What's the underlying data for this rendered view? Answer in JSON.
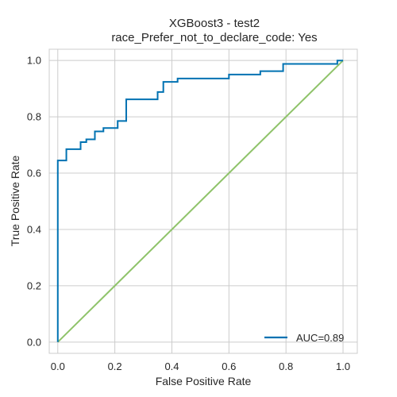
{
  "chart_data": {
    "type": "line",
    "title": "XGBoost3 - test2",
    "subtitle": "race_Prefer_not_to_declare_code: Yes",
    "xlabel": "False Positive Rate",
    "ylabel": "True Positive Rate",
    "xlim": [
      -0.03,
      1.05
    ],
    "ylim": [
      -0.04,
      1.04
    ],
    "xticks": [
      0.0,
      0.2,
      0.4,
      0.6,
      0.8,
      1.0
    ],
    "xtick_labels": [
      "0.0",
      "0.2",
      "0.4",
      "0.6",
      "0.8",
      "1.0"
    ],
    "yticks": [
      0.0,
      0.2,
      0.4,
      0.6,
      0.8,
      1.0
    ],
    "ytick_labels": [
      "0.0",
      "0.2",
      "0.4",
      "0.6",
      "0.8",
      "1.0"
    ],
    "grid": true,
    "legend_position": "lower-right",
    "series": [
      {
        "name": "AUC=0.89",
        "color": "#0072b2",
        "kind": "step",
        "x": [
          0.0,
          0.0,
          0.0,
          0.03,
          0.03,
          0.08,
          0.08,
          0.1,
          0.1,
          0.13,
          0.13,
          0.16,
          0.16,
          0.21,
          0.21,
          0.24,
          0.24,
          0.35,
          0.35,
          0.37,
          0.37,
          0.42,
          0.42,
          0.6,
          0.6,
          0.71,
          0.71,
          0.79,
          0.79,
          0.98,
          0.98,
          1.0
        ],
        "y": [
          0.0,
          0.645,
          0.645,
          0.645,
          0.685,
          0.685,
          0.71,
          0.71,
          0.72,
          0.72,
          0.748,
          0.748,
          0.76,
          0.76,
          0.785,
          0.785,
          0.862,
          0.862,
          0.888,
          0.888,
          0.924,
          0.924,
          0.936,
          0.936,
          0.95,
          0.95,
          0.962,
          0.962,
          0.988,
          0.988,
          1.0,
          1.0
        ]
      },
      {
        "name": "",
        "color": "#8fc36a",
        "kind": "line",
        "x": [
          0.0,
          1.0
        ],
        "y": [
          0.0,
          1.0
        ]
      }
    ]
  }
}
